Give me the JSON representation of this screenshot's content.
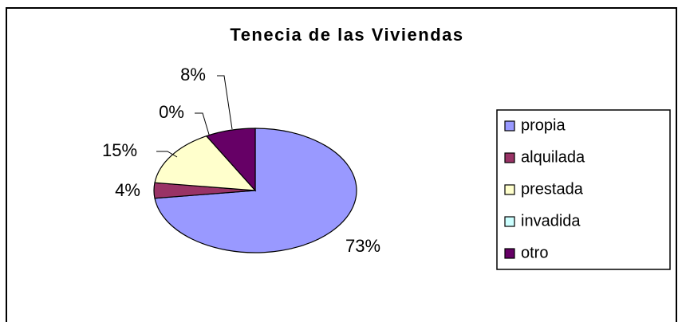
{
  "chart_data": {
    "type": "pie",
    "title": "Tenecia de las Viviendas",
    "categories": [
      "propia",
      "alquilada",
      "prestada",
      "invadida",
      "otro"
    ],
    "series": [
      {
        "name": "Tenecia de las Viviendas",
        "values": [
          73,
          4,
          15,
          0,
          8
        ],
        "value_labels": [
          "73%",
          "4%",
          "15%",
          "0%",
          "8%"
        ],
        "colors": [
          "#9999ff",
          "#993366",
          "#ffffcc",
          "#ccffff",
          "#660066"
        ]
      }
    ],
    "legend": "right"
  }
}
